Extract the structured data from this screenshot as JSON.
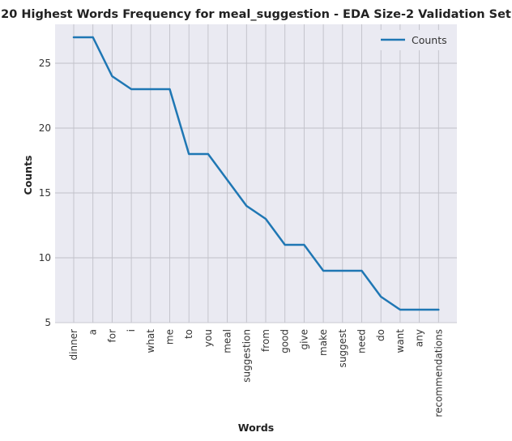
{
  "chart_data": {
    "type": "line",
    "title": "20 Highest Words Frequency for meal_suggestion - EDA Size-2 Validation Set",
    "xlabel": "Words",
    "ylabel": "Counts",
    "categories": [
      "dinner",
      "a",
      "for",
      "i",
      "what",
      "me",
      "to",
      "you",
      "meal",
      "suggestion",
      "from",
      "good",
      "give",
      "make",
      "suggest",
      "need",
      "do",
      "want",
      "any",
      "recommendations"
    ],
    "series": [
      {
        "name": "Counts",
        "values": [
          27,
          27,
          24,
          23,
          23,
          23,
          18,
          18,
          16,
          14,
          13,
          11,
          11,
          9,
          9,
          9,
          7,
          6,
          6,
          6
        ]
      }
    ],
    "ylim": [
      5,
      28
    ],
    "yticks": [
      5,
      10,
      15,
      20,
      25
    ],
    "grid": true,
    "legend_position": "top-right"
  },
  "colors": {
    "plot_background": "#eaeaf2",
    "grid": "#c0c0c8",
    "line": "#1f77b4",
    "axis": "#c8c8d0"
  }
}
